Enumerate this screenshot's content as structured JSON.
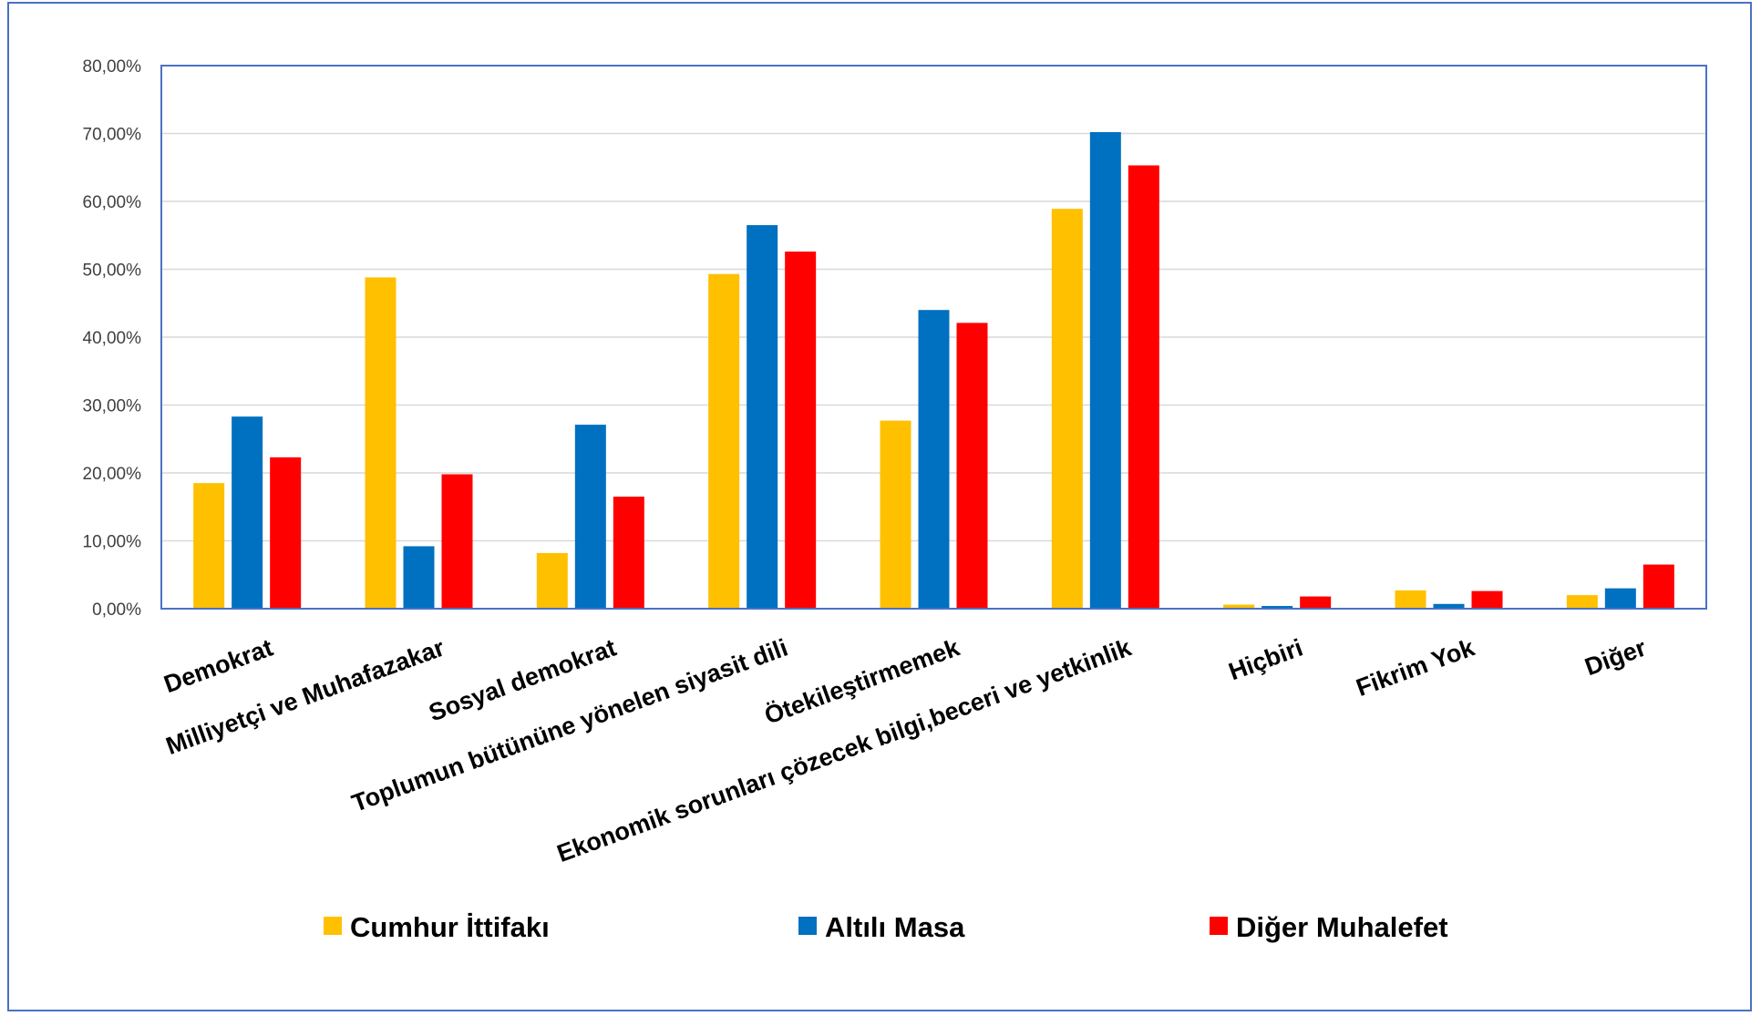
{
  "chart_data": {
    "type": "bar",
    "title": "",
    "xlabel": "",
    "ylabel": "",
    "ylim": [
      0,
      80
    ],
    "yticks": [
      "0,00%",
      "10,00%",
      "20,00%",
      "30,00%",
      "40,00%",
      "50,00%",
      "60,00%",
      "70,00%",
      "80,00%"
    ],
    "grid": true,
    "legend_position": "bottom",
    "categories": [
      "Demokrat",
      "Milliyetçi ve Muhafazakar",
      "Sosyal demokrat",
      "Toplumun bütününe yönelen siyasit dili",
      "Ötekileştirmemek",
      "Ekonomik sorunları çözecek bilgi,beceri ve yetkinlik",
      "Hiçbiri",
      "Fikrim Yok",
      "Diğer"
    ],
    "series": [
      {
        "name": "Cumhur İttifakı",
        "color": "#FFC000",
        "values": [
          18.5,
          48.8,
          8.2,
          49.3,
          27.7,
          58.9,
          0.6,
          2.7,
          2.0
        ]
      },
      {
        "name": "Altılı Masa",
        "color": "#0070C0",
        "values": [
          28.3,
          9.2,
          27.1,
          56.5,
          44.0,
          70.2,
          0.4,
          0.7,
          3.0
        ]
      },
      {
        "name": "Diğer Muhalefet",
        "color": "#FF0000",
        "values": [
          22.3,
          19.8,
          16.5,
          52.6,
          42.1,
          65.3,
          1.8,
          2.6,
          6.5
        ]
      }
    ]
  }
}
